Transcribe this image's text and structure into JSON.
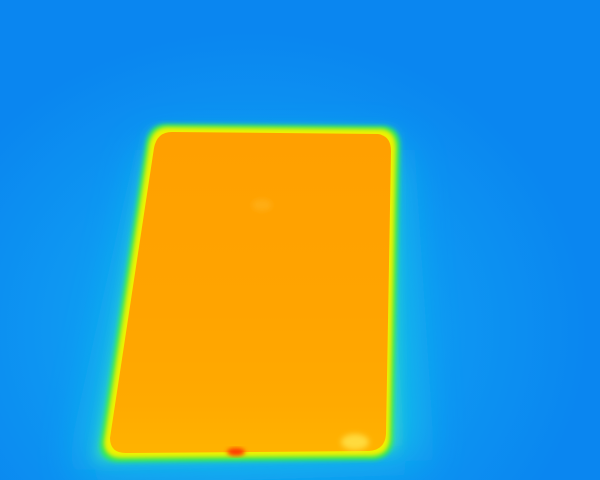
{
  "image": {
    "kind": "thermal-image",
    "subject": "rectangular-device-top-view",
    "palette": {
      "cold_background": "#0a86f0",
      "warm_halo_outer": "#19c4e8",
      "warm_halo_inner": "#3fe0b0",
      "edge_green": "#2ee85a",
      "edge_yellow": "#f0f000",
      "body_orange": "#ffa000",
      "body_orange_light": "#ffb400",
      "hot_spot_red": "#ff3a00"
    }
  }
}
